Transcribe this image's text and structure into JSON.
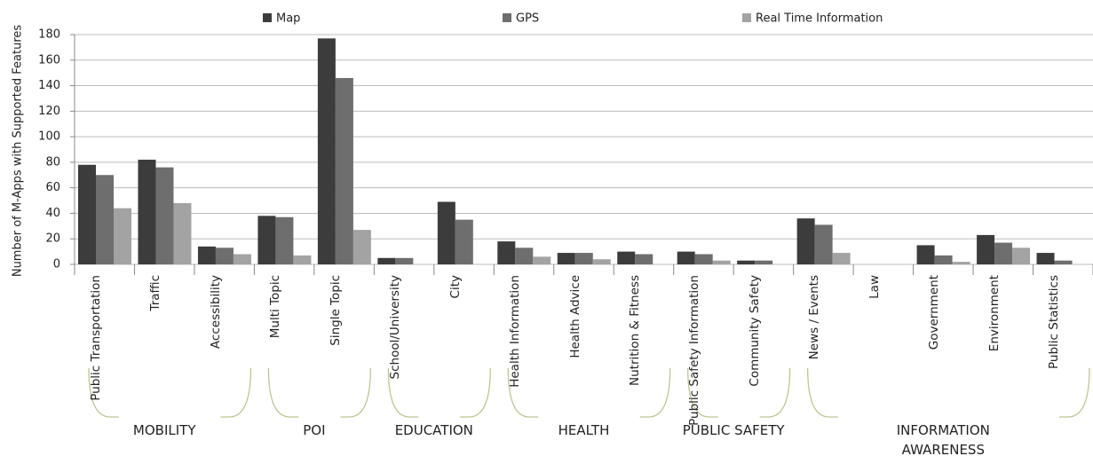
{
  "chart_data": {
    "type": "bar",
    "y_label": "Number of M-Apps with Supported Features",
    "groups": [
      {
        "label": "MOBILITY",
        "categories": [
          "Public Transportation",
          "Traffic",
          "Accessibility"
        ]
      },
      {
        "label": "POI",
        "categories": [
          "Multi Topic",
          "Single Topic"
        ]
      },
      {
        "label": "EDUCATION",
        "categories": [
          "School/University",
          "City"
        ]
      },
      {
        "label": "HEALTH",
        "categories": [
          "Health Information",
          "Health Advice",
          "Nutrition & Fitness"
        ]
      },
      {
        "label": "PUBLIC SAFETY",
        "categories": [
          "Public Safety Information",
          "Community Safety"
        ]
      },
      {
        "label": "INFORMATION AWARENESS",
        "categories": [
          "News / Events",
          "Law",
          "Government",
          "Environment",
          "Public Statistics"
        ]
      }
    ],
    "series": [
      {
        "name": "Map",
        "color": "#3c3c3c",
        "values": [
          78,
          82,
          14,
          38,
          177,
          5,
          49,
          18,
          9,
          10,
          10,
          3,
          36,
          0,
          15,
          23,
          9
        ]
      },
      {
        "name": "GPS",
        "color": "#6e6e6e",
        "values": [
          70,
          76,
          13,
          37,
          146,
          5,
          35,
          13,
          9,
          8,
          8,
          3,
          31,
          0,
          7,
          17,
          3
        ]
      },
      {
        "name": "Real Time Information",
        "color": "#a3a3a3",
        "values": [
          44,
          48,
          8,
          7,
          27,
          0,
          0,
          6,
          4,
          0,
          3,
          0,
          9,
          0,
          2,
          13,
          0
        ]
      }
    ],
    "ylim": [
      0,
      180
    ],
    "yticks": [
      0,
      20,
      40,
      60,
      80,
      100,
      120,
      140,
      160,
      180
    ],
    "grid": true,
    "legend": "top"
  }
}
